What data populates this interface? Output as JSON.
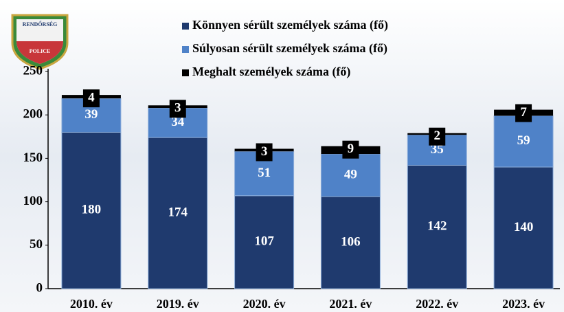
{
  "logo": {
    "top": "RENDŐRSÉG",
    "bottom": "POLICE"
  },
  "chart_data": {
    "type": "stacked_bar",
    "categories": [
      "2010. év",
      "2019. év",
      "2020. év",
      "2021. év",
      "2022. év",
      "2023. év"
    ],
    "series": [
      {
        "name": "Könnyen sérült személyek száma (fő)",
        "color": "#1f3a6e",
        "values": [
          180,
          174,
          107,
          106,
          142,
          140
        ]
      },
      {
        "name": "Súlyosan sérült személyek száma (fő)",
        "color": "#4f82c8",
        "values": [
          39,
          34,
          51,
          49,
          35,
          59
        ]
      },
      {
        "name": "Meghalt személyek száma (fő)",
        "color": "#000000",
        "values": [
          4,
          3,
          3,
          9,
          2,
          7
        ]
      }
    ],
    "ylim": [
      0,
      250
    ],
    "yticks": [
      0,
      50,
      100,
      150,
      200,
      250
    ]
  }
}
